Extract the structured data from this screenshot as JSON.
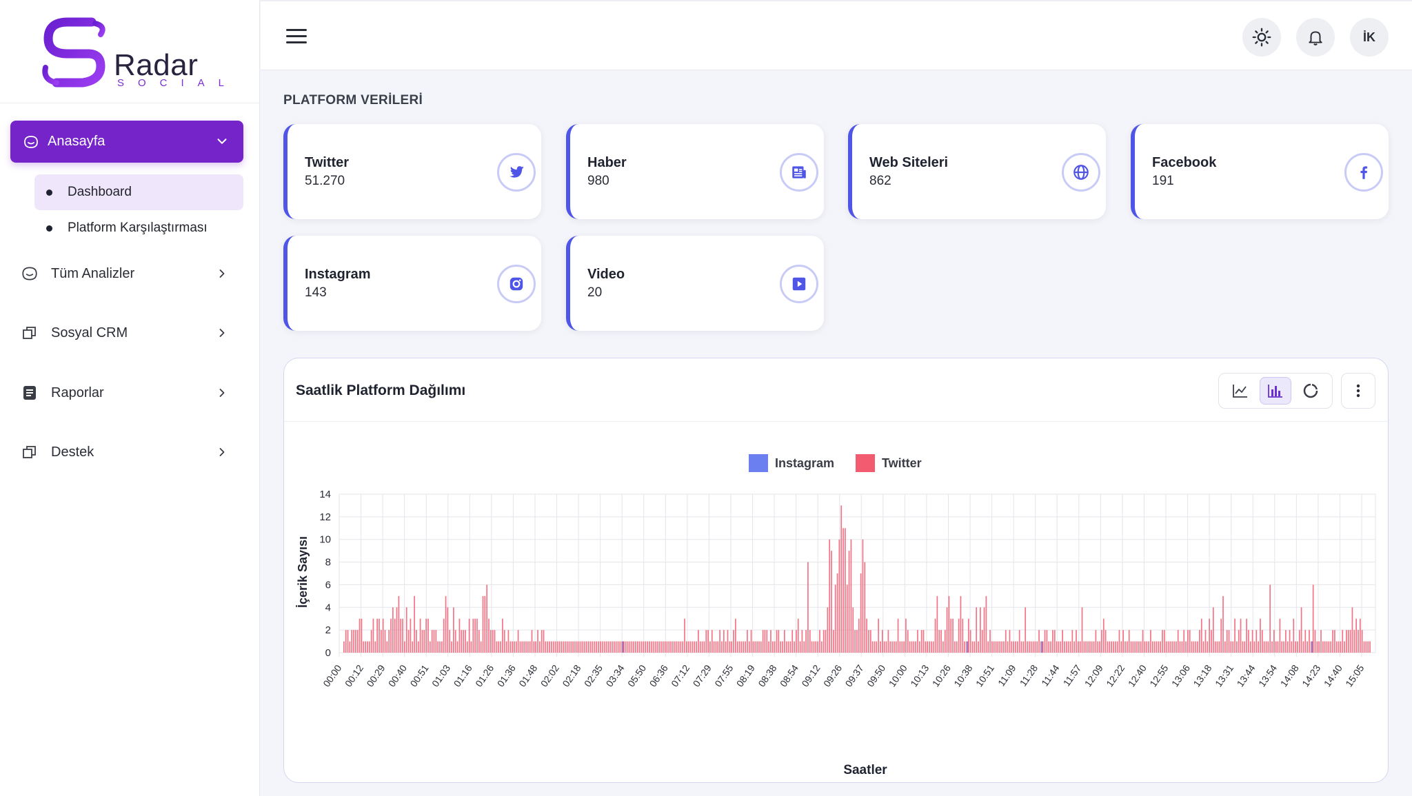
{
  "brand": {
    "name": "Radar",
    "tagline": "SOCIAL"
  },
  "sidebar": {
    "home": {
      "label": "Anasayfa"
    },
    "sub_items": [
      {
        "label": "Dashboard"
      },
      {
        "label": "Platform Karşılaştırması"
      }
    ],
    "items": [
      {
        "label": "Tüm Analizler",
        "icon": "smile-face-icon"
      },
      {
        "label": "Sosyal CRM",
        "icon": "copy-squares-icon"
      },
      {
        "label": "Raporlar",
        "icon": "document-icon"
      },
      {
        "label": "Destek",
        "icon": "copy-squares-icon"
      }
    ]
  },
  "header": {
    "avatar_initials": "İK"
  },
  "section_title": "PLATFORM VERİLERİ",
  "cards": [
    {
      "name": "Twitter",
      "value": "51.270",
      "icon": "twitter-icon"
    },
    {
      "name": "Haber",
      "value": "980",
      "icon": "newspaper-icon"
    },
    {
      "name": "Web Siteleri",
      "value": "862",
      "icon": "globe-icon"
    },
    {
      "name": "Facebook",
      "value": "191",
      "icon": "facebook-icon"
    },
    {
      "name": "Instagram",
      "value": "143",
      "icon": "instagram-icon"
    },
    {
      "name": "Video",
      "value": "20",
      "icon": "play-icon"
    }
  ],
  "colors": {
    "accent": "#7424c9",
    "card_border": "#4f55e6",
    "instagram": "#6c7ff0",
    "twitter": "#f25b70"
  },
  "panel": {
    "title": "Saatlik Platform Dağılımı"
  },
  "chart_data": {
    "type": "bar",
    "xlabel": "Saatler",
    "ylabel": "İçerik Sayısı",
    "ylim": [
      0,
      14
    ],
    "yticks": [
      0,
      2,
      4,
      6,
      8,
      10,
      12,
      14
    ],
    "legend": "top-center",
    "grid": true,
    "x_tick_labels": [
      "00:00",
      "00:12",
      "00:29",
      "00:40",
      "00:51",
      "01:03",
      "01:16",
      "01:26",
      "01:36",
      "01:48",
      "02:02",
      "02:18",
      "02:35",
      "03:34",
      "05:50",
      "06:36",
      "07:12",
      "07:29",
      "07:55",
      "08:19",
      "08:38",
      "08:54",
      "09:12",
      "09:26",
      "09:37",
      "09:50",
      "10:00",
      "10:13",
      "10:26",
      "10:38",
      "10:51",
      "11:09",
      "11:28",
      "11:44",
      "11:57",
      "12:09",
      "12:22",
      "12:40",
      "12:55",
      "13:06",
      "13:18",
      "13:31",
      "13:44",
      "13:54",
      "14:08",
      "14:23",
      "14:40",
      "15:05"
    ],
    "series": [
      {
        "name": "Instagram",
        "values": [
          0,
          0,
          0,
          0,
          0,
          0,
          0,
          0,
          0,
          0,
          0,
          0,
          0,
          0,
          0,
          0,
          0,
          0,
          0,
          0,
          0,
          0,
          0,
          0,
          0,
          0,
          0,
          0,
          0,
          0,
          0,
          0,
          0,
          0,
          0,
          0,
          0,
          0,
          0,
          0,
          0,
          0,
          0,
          0,
          0,
          0,
          0,
          0,
          0,
          0,
          0,
          0,
          0,
          0,
          0,
          0,
          0,
          0,
          0,
          0,
          0,
          0,
          0,
          0,
          0,
          0,
          0,
          0,
          0,
          0,
          0,
          0,
          0,
          0,
          0,
          0,
          0,
          0,
          0,
          0,
          0,
          0,
          0,
          0,
          0,
          0,
          0,
          0,
          0,
          0,
          0,
          0,
          0,
          0,
          0,
          0,
          0,
          0,
          0,
          0,
          0,
          0,
          0,
          0,
          0,
          0,
          0,
          0,
          0,
          0,
          0,
          0,
          0,
          0,
          0,
          0,
          0,
          0,
          0,
          0,
          0,
          0,
          0,
          0,
          0,
          0,
          0,
          0,
          0,
          0,
          0,
          0,
          0,
          0,
          0,
          0,
          0,
          0,
          0,
          0,
          0,
          0,
          1,
          0,
          0,
          0,
          0,
          0,
          0,
          0,
          0,
          0,
          0,
          0,
          0,
          0,
          0,
          0,
          0,
          0,
          0,
          0,
          0,
          0,
          0,
          0,
          0,
          0,
          0,
          0,
          0,
          0,
          0,
          0,
          0,
          0,
          0,
          0,
          0,
          0,
          0,
          0,
          0,
          0,
          0,
          0,
          0,
          0,
          0,
          0,
          0,
          0,
          0,
          0,
          0,
          0,
          0,
          0,
          0,
          0,
          0,
          0,
          0,
          0,
          0,
          0,
          0,
          0,
          0,
          0,
          0,
          0,
          0,
          0,
          0,
          0,
          0,
          0,
          0,
          0,
          0,
          0,
          0,
          0,
          0,
          0,
          0,
          0,
          0,
          0,
          0,
          0,
          0,
          0,
          0,
          0,
          0,
          0,
          0,
          0,
          0,
          0,
          0,
          0,
          0,
          0,
          0,
          0,
          0,
          0,
          0,
          0,
          0,
          0,
          0,
          0,
          0,
          0,
          0,
          0,
          0,
          0,
          0,
          0,
          0,
          0,
          0,
          0,
          0,
          0,
          0,
          0,
          0,
          0,
          0,
          0,
          0,
          0,
          0,
          0,
          0,
          0,
          0,
          0,
          0,
          0,
          0,
          0,
          0,
          0,
          0,
          0,
          0,
          0,
          0,
          0,
          0,
          0,
          0,
          0,
          0,
          0,
          0,
          0,
          0,
          0,
          0,
          0,
          0,
          0,
          0,
          0,
          0,
          0,
          0,
          0,
          0,
          0,
          1,
          0,
          0,
          0,
          0,
          0,
          0,
          0,
          0,
          0,
          0,
          0,
          0,
          0,
          0,
          0,
          0,
          0,
          0,
          0,
          0,
          0,
          0,
          0,
          0,
          0,
          0,
          0,
          0,
          0,
          0,
          0,
          0,
          0,
          0,
          0,
          0,
          0,
          1,
          0,
          0,
          0,
          0,
          0,
          0,
          0,
          0,
          0,
          0,
          0,
          0,
          0,
          0,
          0,
          0,
          0,
          0,
          0,
          0,
          0,
          0,
          0,
          0,
          0,
          0,
          0,
          0,
          0,
          0,
          0,
          0,
          0,
          0,
          0,
          0,
          0,
          0,
          0,
          0,
          0,
          0,
          0,
          0,
          0,
          0,
          0,
          0,
          0,
          0,
          0,
          0,
          0,
          0,
          0,
          0,
          0,
          0,
          0,
          0,
          0,
          0,
          0,
          0,
          0,
          0,
          0,
          0,
          0,
          0,
          0,
          0,
          0,
          0,
          0,
          0,
          0,
          0,
          0,
          0,
          0,
          0,
          0,
          0,
          0,
          0,
          0,
          0,
          0,
          0,
          0,
          0,
          0,
          0,
          0,
          0,
          0,
          0,
          0,
          0,
          0,
          0,
          0,
          0,
          0,
          0,
          0,
          0,
          0,
          0,
          0,
          0,
          0,
          0,
          0,
          0,
          0,
          0,
          0,
          0,
          0,
          0,
          0,
          0,
          0,
          0,
          0,
          0,
          0,
          0,
          0,
          0,
          0,
          0,
          0,
          0,
          0,
          1,
          0,
          0,
          0,
          0,
          0,
          0,
          0,
          0,
          0,
          0,
          0,
          0,
          0,
          0,
          0,
          0,
          0,
          0,
          0,
          0,
          0,
          0,
          0,
          0,
          0,
          0,
          0,
          0,
          0,
          0,
          0,
          0,
          0,
          0,
          0,
          0,
          0,
          0,
          0,
          0,
          0,
          0,
          0,
          0,
          0,
          0,
          0,
          0,
          0,
          0,
          0,
          0,
          0,
          0,
          0,
          0,
          0,
          0,
          0,
          0,
          0,
          0,
          0,
          0,
          0,
          0,
          0,
          0,
          0,
          0,
          0,
          0,
          0,
          0,
          0,
          0,
          0,
          0,
          0,
          0,
          0,
          0,
          0,
          0,
          0,
          0,
          0,
          0,
          0,
          0,
          0,
          0,
          0,
          0,
          0,
          0,
          0,
          0,
          0,
          0,
          0,
          0,
          0,
          0,
          0,
          0,
          0,
          0,
          0
        ]
      },
      {
        "name": "Twitter",
        "values": [
          1,
          2,
          2,
          1,
          2,
          2,
          2,
          2,
          3,
          3,
          1,
          1,
          1,
          1,
          2,
          3,
          1,
          3,
          3,
          2,
          3,
          2,
          1,
          2,
          3,
          4,
          3,
          4,
          5,
          3,
          3,
          1,
          4,
          2,
          3,
          1,
          5,
          2,
          1,
          3,
          2,
          2,
          3,
          3,
          1,
          2,
          2,
          2,
          1,
          1,
          1,
          3,
          5,
          4,
          2,
          1,
          4,
          2,
          1,
          3,
          2,
          2,
          2,
          1,
          3,
          1,
          3,
          3,
          3,
          2,
          1,
          5,
          5,
          6,
          3,
          2,
          2,
          2,
          1,
          1,
          1,
          3,
          2,
          1,
          2,
          1,
          1,
          1,
          1,
          2,
          1,
          1,
          1,
          1,
          1,
          1,
          2,
          1,
          1,
          2,
          1,
          2,
          2,
          1,
          1,
          1,
          1,
          1,
          1,
          1,
          1,
          1,
          1,
          1,
          1,
          1,
          1,
          1,
          1,
          1,
          1,
          1,
          1,
          1,
          1,
          1,
          1,
          1,
          1,
          1,
          1,
          1,
          1,
          1,
          1,
          1,
          1,
          1,
          1,
          1,
          1,
          1,
          1,
          1,
          1,
          1,
          1,
          1,
          1,
          1,
          1,
          1,
          1,
          1,
          1,
          1,
          1,
          1,
          1,
          1,
          1,
          1,
          1,
          1,
          1,
          1,
          1,
          1,
          1,
          1,
          1,
          1,
          1,
          1,
          3,
          1,
          1,
          1,
          1,
          1,
          1,
          2,
          1,
          1,
          1,
          2,
          2,
          1,
          2,
          1,
          1,
          1,
          2,
          1,
          2,
          1,
          2,
          1,
          1,
          2,
          3,
          1,
          1,
          1,
          1,
          1,
          2,
          1,
          2,
          1,
          1,
          1,
          1,
          1,
          2,
          2,
          2,
          1,
          2,
          1,
          1,
          2,
          2,
          1,
          1,
          2,
          1,
          1,
          1,
          2,
          1,
          2,
          3,
          1,
          2,
          1,
          2,
          8,
          2,
          1,
          1,
          1,
          1,
          2,
          1,
          2,
          2,
          4,
          10,
          9,
          2,
          6,
          7,
          10,
          13,
          11,
          11,
          6,
          9,
          10,
          4,
          2,
          2,
          3,
          7,
          10,
          8,
          3,
          2,
          2,
          1,
          1,
          1,
          3,
          1,
          2,
          1,
          1,
          2,
          1,
          1,
          1,
          1,
          3,
          1,
          1,
          1,
          3,
          2,
          1,
          1,
          1,
          1,
          2,
          1,
          2,
          2,
          1,
          1,
          1,
          1,
          1,
          3,
          5,
          2,
          2,
          1,
          2,
          4,
          5,
          3,
          3,
          1,
          1,
          3,
          5,
          3,
          1,
          1,
          3,
          2,
          1,
          1,
          4,
          1,
          4,
          2,
          4,
          5,
          1,
          2,
          1,
          1,
          1,
          1,
          1,
          1,
          1,
          2,
          1,
          2,
          1,
          1,
          1,
          1,
          2,
          1,
          1,
          4,
          1,
          1,
          1,
          1,
          1,
          1,
          2,
          1,
          1,
          2,
          2,
          1,
          1,
          2,
          2,
          1,
          1,
          1,
          2,
          1,
          1,
          1,
          1,
          2,
          1,
          2,
          1,
          1,
          4,
          1,
          1,
          1,
          1,
          1,
          1,
          2,
          1,
          1,
          2,
          3,
          2,
          1,
          1,
          1,
          1,
          1,
          1,
          2,
          1,
          2,
          1,
          1,
          2,
          1,
          1,
          1,
          1,
          1,
          1,
          2,
          1,
          1,
          1,
          2,
          1,
          1,
          1,
          1,
          1,
          2,
          2,
          1,
          1,
          1,
          1,
          1,
          1,
          2,
          1,
          1,
          2,
          1,
          2,
          2,
          1,
          1,
          1,
          1,
          2,
          3,
          1,
          2,
          1,
          3,
          2,
          4,
          1,
          1,
          1,
          3,
          5,
          1,
          2,
          2,
          1,
          1,
          3,
          1,
          2,
          3,
          1,
          1,
          3,
          2,
          1,
          2,
          1,
          2,
          1,
          3,
          2,
          1,
          1,
          1,
          6,
          1,
          2,
          1,
          1,
          3,
          1,
          1,
          2,
          1,
          2,
          1,
          3,
          1,
          1,
          2,
          4,
          1,
          2,
          1,
          2,
          1,
          6,
          2,
          1,
          1,
          2,
          1,
          1,
          1,
          1,
          1,
          2,
          2,
          1,
          1,
          1,
          2,
          1,
          2,
          2,
          2,
          4,
          2,
          3,
          2,
          3,
          2,
          1,
          1,
          1,
          1
        ]
      }
    ]
  }
}
